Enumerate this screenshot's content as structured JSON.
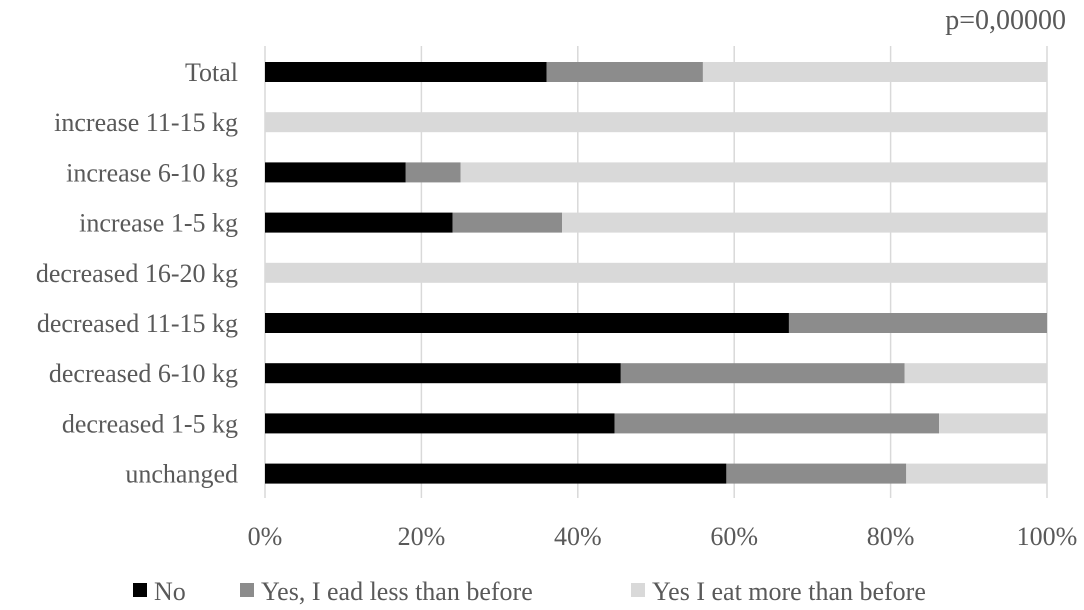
{
  "chart_data": {
    "type": "bar",
    "orientation": "horizontal",
    "stacked": true,
    "annotation": "p=0,00000",
    "categories": [
      "Total",
      "increase 11-15 kg",
      "increase 6-10 kg",
      "increase 1-5 kg",
      "decreased 16-20 kg",
      "decreased 11-15 kg",
      "decreased 6-10 kg",
      "decreased 1-5 kg",
      "unchanged"
    ],
    "series": [
      {
        "name": "No",
        "color": "#000000",
        "values": [
          36,
          0,
          18,
          24,
          0,
          67,
          45.5,
          44.7,
          59
        ]
      },
      {
        "name": "Yes, I ead less than before",
        "color": "#8c8c8c",
        "values": [
          20,
          0,
          7,
          14,
          0,
          33,
          36.3,
          41.5,
          23
        ]
      },
      {
        "name": "Yes I eat more than before",
        "color": "#d9d9d9",
        "values": [
          44,
          100,
          75,
          62,
          100,
          0,
          18.2,
          13.8,
          18
        ]
      }
    ],
    "xlim": [
      0,
      100
    ],
    "xticks": [
      "0%",
      "20%",
      "40%",
      "60%",
      "80%",
      "100%"
    ],
    "xlabel": "",
    "ylabel": "",
    "grid": true,
    "legend_position": "bottom"
  }
}
